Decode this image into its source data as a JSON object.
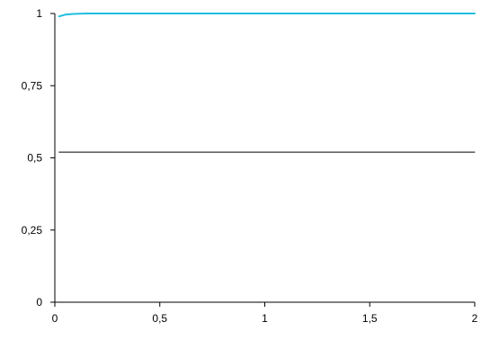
{
  "colors": {
    "axis": "#000000",
    "series_curve": "#1fbfe0",
    "series_flat": "#000000"
  },
  "chart_data": {
    "type": "line",
    "title": "",
    "xlabel": "",
    "ylabel": "",
    "xlim": [
      0,
      2
    ],
    "ylim": [
      0,
      1
    ],
    "grid": false,
    "legend": "none",
    "x_ticks": [
      {
        "value": 0,
        "label": "0"
      },
      {
        "value": 0.5,
        "label": "0,5"
      },
      {
        "value": 1,
        "label": "1"
      },
      {
        "value": 1.5,
        "label": "1,5"
      },
      {
        "value": 2,
        "label": "2"
      }
    ],
    "y_ticks": [
      {
        "value": 0,
        "label": "0"
      },
      {
        "value": 0.25,
        "label": "0,25"
      },
      {
        "value": 0.5,
        "label": "0,5"
      },
      {
        "value": 0.75,
        "label": "0,75"
      },
      {
        "value": 1,
        "label": "1"
      }
    ],
    "series": [
      {
        "color": "#1fbfe0",
        "stroke_width": 2,
        "x": [
          0.02,
          0.03,
          0.04,
          0.05,
          0.06,
          0.08,
          0.1,
          0.15,
          0.2,
          0.5,
          1,
          1.5,
          2
        ],
        "y": [
          0.99,
          0.992,
          0.994,
          0.996,
          0.997,
          0.998,
          0.999,
          1,
          1,
          1,
          1,
          1,
          1
        ]
      },
      {
        "color": "#000000",
        "stroke_width": 1,
        "x": [
          0.02,
          2
        ],
        "y": [
          0.52,
          0.52
        ]
      }
    ]
  }
}
